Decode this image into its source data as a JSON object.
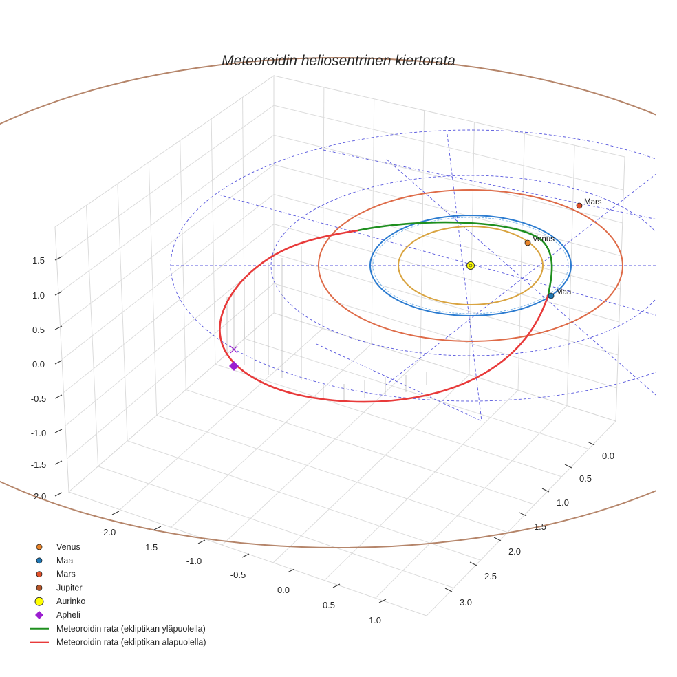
{
  "chart_data": {
    "type": "3d-orbit",
    "title": "Meteoroidin heliosentrinen kiertorata",
    "axes": {
      "x": {
        "ticks": [
          "-2.0",
          "-1.5",
          "-1.0",
          "-0.5",
          "0.0",
          "0.5",
          "1.0"
        ]
      },
      "y": {
        "ticks": [
          "0.0",
          "0.5",
          "1.0",
          "1.5",
          "2.0",
          "2.5",
          "3.0"
        ]
      },
      "z": {
        "ticks": [
          "1.5",
          "1.0",
          "0.5",
          "0.0",
          "-0.5",
          "-1.0",
          "-1.5",
          "-2.0"
        ]
      }
    },
    "planets": [
      {
        "name": "Venus",
        "label": "Venus",
        "color": "#e8842a",
        "orbit_color": "#d9a441",
        "orbit_radius_au": 0.72
      },
      {
        "name": "Maa",
        "label": "Maa",
        "color": "#1f77b4",
        "orbit_color": "#2b7bd0",
        "orbit_radius_au": 1.0
      },
      {
        "name": "Mars",
        "label": "Mars",
        "color": "#e1502a",
        "orbit_color": "#de6b48",
        "orbit_radius_au": 1.52
      },
      {
        "name": "Jupiter",
        "label": "Jupiter",
        "color": "#b5562a",
        "orbit_color": "#b5856a",
        "orbit_radius_au": 5.2
      }
    ],
    "sun": {
      "label": "Aurinko",
      "color": "#ffff00"
    },
    "aphelion": {
      "label": "Apheli",
      "color": "#9b1ed0"
    },
    "meteoroid": {
      "above_label": "Meteoroidin rata (ekliptikan yläpuolella)",
      "below_label": "Meteoroidin rata (ekliptikan alapuolella)",
      "above_color": "#1f8f1f",
      "below_color": "#e83a3a"
    },
    "legend": [
      {
        "kind": "dot",
        "label": "Venus",
        "color": "#e8842a"
      },
      {
        "kind": "dot",
        "label": "Maa",
        "color": "#1f77b4"
      },
      {
        "kind": "dot",
        "label": "Mars",
        "color": "#e1502a"
      },
      {
        "kind": "dot",
        "label": "Jupiter",
        "color": "#b5562a"
      },
      {
        "kind": "bigdot",
        "label": "Aurinko",
        "color": "#ffff00"
      },
      {
        "kind": "diamond",
        "label": "Apheli",
        "color": "#9b1ed0"
      },
      {
        "kind": "line",
        "label": "Meteoroidin rata (ekliptikan yläpuolella)",
        "color": "#1f8f1f"
      },
      {
        "kind": "line",
        "label": "Meteoroidin rata (ekliptikan alapuolella)",
        "color": "#e83a3a"
      }
    ],
    "reference_grid": {
      "style": "dashed",
      "color": "#5555dd"
    }
  }
}
